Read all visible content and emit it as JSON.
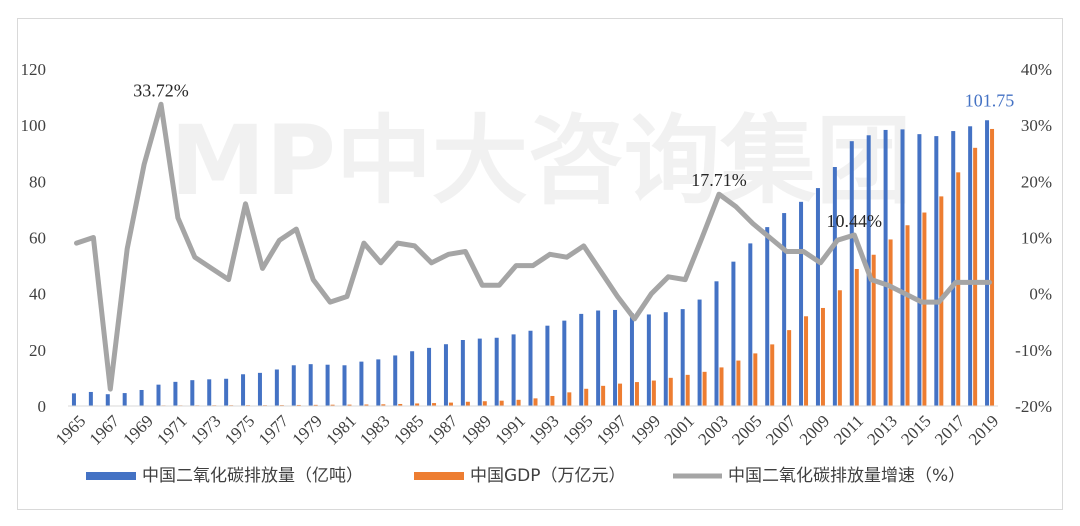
{
  "watermark": "MP中大咨询集团",
  "colors": {
    "co2": "#4472c4",
    "gdp": "#ed7d31",
    "growth": "#a5a5a5",
    "last_label": "#4472c4"
  },
  "chart_data": {
    "type": "bar",
    "title": "",
    "legend": {
      "placement": "bottom"
    },
    "grid": false,
    "x": [
      "1965",
      "1966",
      "1967",
      "1968",
      "1969",
      "1970",
      "1971",
      "1972",
      "1973",
      "1974",
      "1975",
      "1976",
      "1977",
      "1978",
      "1979",
      "1980",
      "1981",
      "1982",
      "1983",
      "1984",
      "1985",
      "1986",
      "1987",
      "1988",
      "1989",
      "1990",
      "1991",
      "1992",
      "1993",
      "1994",
      "1995",
      "1996",
      "1997",
      "1998",
      "1999",
      "2000",
      "2001",
      "2002",
      "2003",
      "2004",
      "2005",
      "2006",
      "2007",
      "2008",
      "2009",
      "2010",
      "2011",
      "2012",
      "2013",
      "2014",
      "2015",
      "2016",
      "2017",
      "2018",
      "2019"
    ],
    "x_tick_labels": [
      "1965",
      "1967",
      "1969",
      "1971",
      "1973",
      "1975",
      "1977",
      "1979",
      "1981",
      "1983",
      "1985",
      "1987",
      "1989",
      "1991",
      "1993",
      "1995",
      "1997",
      "1999",
      "2001",
      "2003",
      "2005",
      "2007",
      "2009",
      "2011",
      "2013",
      "2015",
      "2017",
      "2019"
    ],
    "y_left": {
      "ticks": [
        "0",
        "20",
        "40",
        "60",
        "80",
        "100",
        "120"
      ],
      "range": [
        0,
        120
      ]
    },
    "y_right": {
      "ticks": [
        "-20%",
        "-10%",
        "0%",
        "10%",
        "20%",
        "30%",
        "40%"
      ],
      "range": [
        -20,
        40
      ]
    },
    "series": [
      {
        "name": "中国二氧化碳排放量（亿吨）",
        "type": "bar",
        "axis": "left",
        "values": [
          4.5,
          5.0,
          4.2,
          4.6,
          5.7,
          7.6,
          8.6,
          9.2,
          9.5,
          9.7,
          11.3,
          11.8,
          13.0,
          14.5,
          14.9,
          14.7,
          14.5,
          15.8,
          16.6,
          18.0,
          19.5,
          20.7,
          22.0,
          23.5,
          24.0,
          24.3,
          25.5,
          26.8,
          28.6,
          30.4,
          32.8,
          34.0,
          34.2,
          33.0,
          32.6,
          33.4,
          34.5,
          37.9,
          44.4,
          51.4,
          57.9,
          63.7,
          68.7,
          72.7,
          77.6,
          85.1,
          94.3,
          96.4,
          98.3,
          98.5,
          96.8,
          96.1,
          97.9,
          99.6,
          101.75
        ]
      },
      {
        "name": "中国GDP（万亿元）",
        "type": "bar",
        "axis": "right-scale-left",
        "values": [
          0.17,
          0.19,
          0.18,
          0.17,
          0.19,
          0.23,
          0.24,
          0.25,
          0.27,
          0.28,
          0.3,
          0.29,
          0.32,
          0.37,
          0.41,
          0.46,
          0.49,
          0.54,
          0.6,
          0.72,
          0.91,
          1.04,
          1.21,
          1.51,
          1.7,
          1.89,
          2.2,
          2.72,
          3.57,
          4.86,
          6.13,
          7.18,
          7.97,
          8.52,
          9.06,
          10.03,
          11.09,
          12.17,
          13.74,
          16.18,
          18.73,
          21.94,
          27.02,
          31.95,
          34.91,
          41.21,
          48.79,
          53.86,
          59.3,
          64.36,
          68.89,
          74.64,
          83.2,
          91.93,
          98.65
        ]
      },
      {
        "name": "中国二氧化碳排放量增速（%）",
        "type": "line",
        "axis": "right",
        "values": [
          9.0,
          10.0,
          -17.0,
          8.0,
          23.0,
          33.72,
          13.5,
          6.5,
          4.5,
          2.5,
          16.0,
          4.5,
          9.5,
          11.5,
          2.5,
          -1.5,
          -0.5,
          9.0,
          5.5,
          9.0,
          8.5,
          5.5,
          7.0,
          7.5,
          1.5,
          1.5,
          5.0,
          5.0,
          7.0,
          6.5,
          8.5,
          4.0,
          -0.5,
          -4.5,
          0.0,
          3.0,
          2.5,
          10.0,
          17.71,
          15.5,
          12.5,
          10.0,
          7.5,
          7.5,
          5.5,
          9.5,
          10.44,
          2.5,
          1.5,
          0.0,
          -1.5,
          -1.5,
          2.0,
          2.0,
          2.0
        ]
      }
    ],
    "annotations": [
      {
        "text": "33.72%",
        "year": "1970",
        "series": 2
      },
      {
        "text": "17.71%",
        "year": "2003",
        "series": 2
      },
      {
        "text": "10.44%",
        "year": "2011",
        "series": 2
      },
      {
        "text": "101.75",
        "year": "2019",
        "series": 0
      }
    ]
  }
}
